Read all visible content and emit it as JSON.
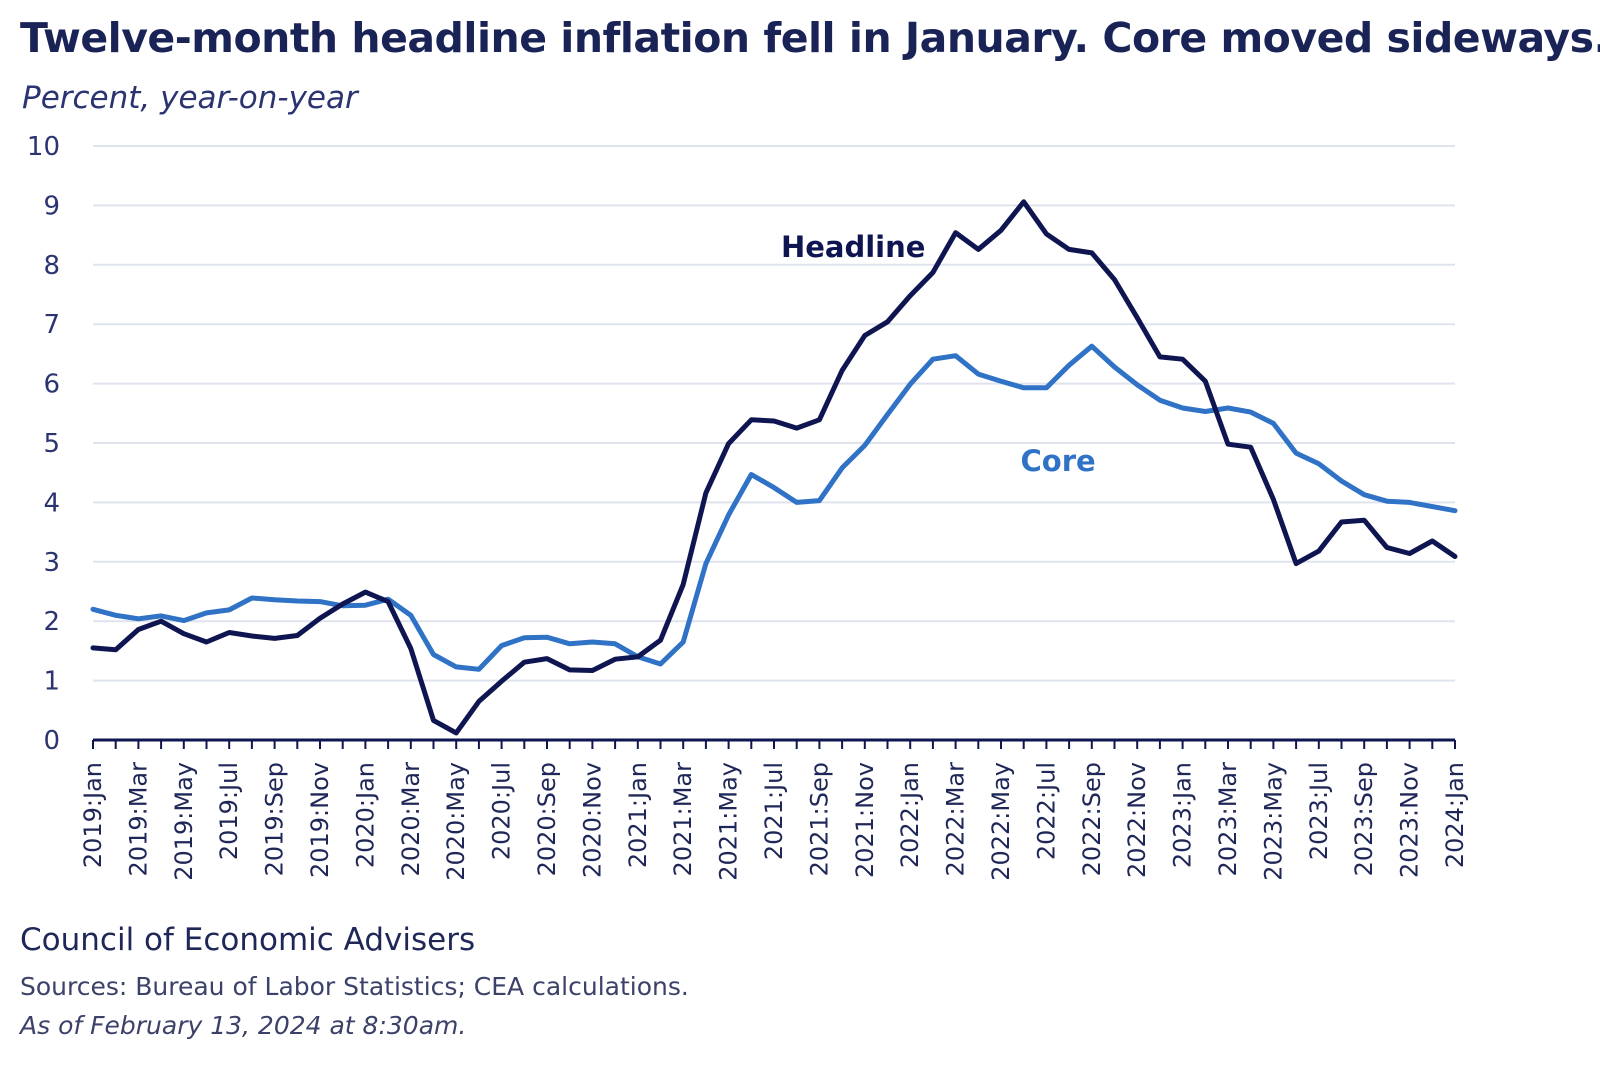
{
  "chart_data": {
    "type": "line",
    "title": "Twelve-month headline inflation fell in January. Core moved sideways.",
    "subtitle": "Percent, year-on-year",
    "ylim": [
      0,
      10
    ],
    "yticks": [
      "0",
      "1",
      "2",
      "3",
      "4",
      "5",
      "6",
      "7",
      "8",
      "9",
      "10"
    ],
    "grid": true,
    "x": [
      "2019:Jan",
      "2019:Feb",
      "2019:Mar",
      "2019:Apr",
      "2019:May",
      "2019:Jun",
      "2019:Jul",
      "2019:Aug",
      "2019:Sep",
      "2019:Oct",
      "2019:Nov",
      "2019:Dec",
      "2020:Jan",
      "2020:Feb",
      "2020:Mar",
      "2020:Apr",
      "2020:May",
      "2020:Jun",
      "2020:Jul",
      "2020:Aug",
      "2020:Sep",
      "2020:Oct",
      "2020:Nov",
      "2020:Dec",
      "2021:Jan",
      "2021:Feb",
      "2021:Mar",
      "2021:Apr",
      "2021:May",
      "2021:Jun",
      "2021:Jul",
      "2021:Aug",
      "2021:Sep",
      "2021:Oct",
      "2021:Nov",
      "2021:Dec",
      "2022:Jan",
      "2022:Feb",
      "2022:Mar",
      "2022:Apr",
      "2022:May",
      "2022:Jun",
      "2022:Jul",
      "2022:Aug",
      "2022:Sep",
      "2022:Oct",
      "2022:Nov",
      "2022:Dec",
      "2023:Jan",
      "2023:Feb",
      "2023:Mar",
      "2023:Apr",
      "2023:May",
      "2023:Jun",
      "2023:Jul",
      "2023:Aug",
      "2023:Sep",
      "2023:Oct",
      "2023:Nov",
      "2023:Dec",
      "2024:Jan"
    ],
    "xtick_labels": [
      "2019:Jan",
      "2019:Mar",
      "2019:May",
      "2019:Jul",
      "2019:Sep",
      "2019:Nov",
      "2020:Jan",
      "2020:Mar",
      "2020:May",
      "2020:Jul",
      "2020:Sep",
      "2020:Nov",
      "2021:Jan",
      "2021:Mar",
      "2021:May",
      "2021:Jul",
      "2021:Sep",
      "2021:Nov",
      "2022:Jan",
      "2022:Mar",
      "2022:May",
      "2022:Jul",
      "2022:Sep",
      "2022:Nov",
      "2023:Jan",
      "2023:Mar",
      "2023:May",
      "2023:Jul",
      "2023:Sep",
      "2023:Nov",
      "2024:Jan"
    ],
    "series": [
      {
        "name": "Headline",
        "color": "#0f1550",
        "values": [
          1.55,
          1.52,
          1.86,
          2.0,
          1.79,
          1.65,
          1.81,
          1.75,
          1.71,
          1.76,
          2.05,
          2.29,
          2.49,
          2.33,
          1.54,
          0.33,
          0.12,
          0.65,
          0.99,
          1.31,
          1.37,
          1.18,
          1.17,
          1.36,
          1.4,
          1.68,
          2.62,
          4.16,
          4.99,
          5.39,
          5.37,
          5.25,
          5.39,
          6.22,
          6.81,
          7.04,
          7.48,
          7.87,
          8.54,
          8.26,
          8.58,
          9.06,
          8.52,
          8.26,
          8.2,
          7.75,
          7.11,
          6.45,
          6.41,
          6.04,
          4.98,
          4.93,
          4.05,
          2.97,
          3.18,
          3.67,
          3.7,
          3.24,
          3.14,
          3.35,
          3.09
        ]
      },
      {
        "name": "Core",
        "color": "#2f72c6",
        "values": [
          2.2,
          2.1,
          2.04,
          2.09,
          2.01,
          2.14,
          2.19,
          2.39,
          2.36,
          2.34,
          2.33,
          2.26,
          2.27,
          2.37,
          2.1,
          1.44,
          1.23,
          1.19,
          1.59,
          1.72,
          1.73,
          1.62,
          1.65,
          1.62,
          1.4,
          1.28,
          1.65,
          2.97,
          3.79,
          4.47,
          4.25,
          4.0,
          4.03,
          4.58,
          4.96,
          5.48,
          5.99,
          6.41,
          6.47,
          6.16,
          6.04,
          5.93,
          5.93,
          6.31,
          6.63,
          6.28,
          5.98,
          5.72,
          5.59,
          5.53,
          5.59,
          5.52,
          5.33,
          4.83,
          4.65,
          4.36,
          4.13,
          4.02,
          4.0,
          3.93,
          3.86
        ]
      }
    ]
  },
  "footer": {
    "organization": "Council of Economic Advisers",
    "sources": "Sources: Bureau of Labor Statistics; CEA calculations.",
    "as_of": "As of February 13, 2024 at 8:30am."
  }
}
